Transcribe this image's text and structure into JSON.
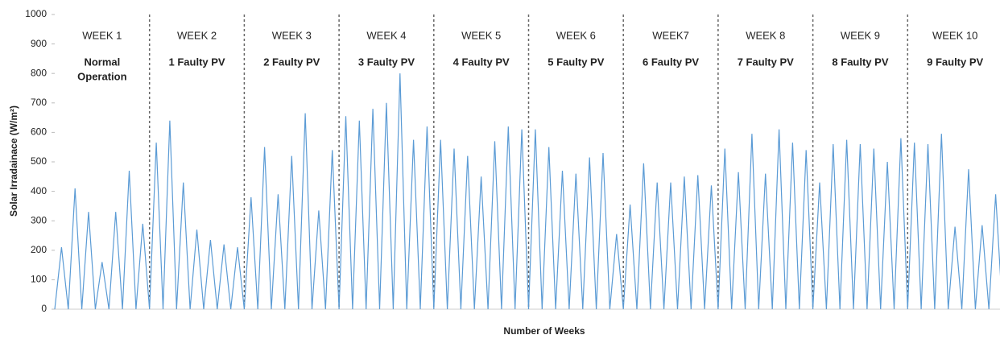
{
  "chart_data": {
    "type": "line",
    "y_label": "Solar Irradainace  (W/m²)",
    "x_label": "Number of Weeks",
    "color": "#5b9bd5",
    "ylim": [
      0,
      1000
    ],
    "yticks": [
      0,
      100,
      200,
      300,
      400,
      500,
      600,
      700,
      800,
      900,
      1000
    ],
    "weeks": [
      {
        "label": "WEEK 1",
        "status": [
          "Normal",
          "Operation"
        ]
      },
      {
        "label": "WEEK 2",
        "status": [
          "1 Faulty PV"
        ]
      },
      {
        "label": "WEEK 3",
        "status": [
          "2 Faulty PV"
        ]
      },
      {
        "label": "WEEK 4",
        "status": [
          "3 Faulty PV"
        ]
      },
      {
        "label": "WEEK 5",
        "status": [
          "4 Faulty PV"
        ]
      },
      {
        "label": "WEEK 6",
        "status": [
          "5  Faulty PV"
        ]
      },
      {
        "label": "WEEK7",
        "status": [
          "6 Faulty PV"
        ]
      },
      {
        "label": "WEEK 8",
        "status": [
          "7 Faulty PV"
        ]
      },
      {
        "label": "WEEK 9",
        "status": [
          "8 Faulty PV"
        ]
      },
      {
        "label": "WEEK 10",
        "status": [
          "9 Faulty PV"
        ]
      }
    ],
    "values": [
      0,
      210,
      0,
      410,
      0,
      330,
      0,
      160,
      0,
      330,
      0,
      470,
      0,
      290,
      0,
      565,
      0,
      640,
      0,
      430,
      0,
      270,
      0,
      235,
      0,
      220,
      0,
      210,
      0,
      380,
      0,
      550,
      0,
      390,
      0,
      520,
      0,
      665,
      0,
      335,
      0,
      540,
      0,
      655,
      0,
      640,
      0,
      680,
      0,
      700,
      0,
      800,
      0,
      575,
      0,
      620,
      0,
      575,
      0,
      545,
      0,
      520,
      0,
      450,
      0,
      570,
      0,
      620,
      0,
      610,
      0,
      610,
      0,
      550,
      0,
      470,
      0,
      460,
      0,
      515,
      0,
      530,
      0,
      255,
      0,
      355,
      0,
      495,
      0,
      430,
      0,
      430,
      0,
      450,
      0,
      455,
      0,
      420,
      0,
      545,
      0,
      465,
      0,
      595,
      0,
      460,
      0,
      610,
      0,
      565,
      0,
      540,
      0,
      430,
      0,
      560,
      0,
      575,
      0,
      560,
      0,
      545,
      0,
      500,
      0,
      580,
      0,
      565,
      0,
      560,
      0,
      595,
      0,
      280,
      0,
      475,
      0,
      285,
      0,
      390,
      0
    ]
  }
}
